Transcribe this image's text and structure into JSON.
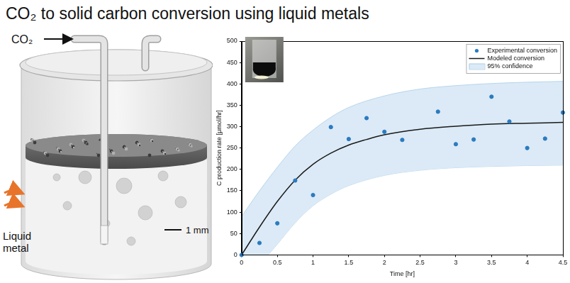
{
  "title": "CO₂ to solid carbon conversion using liquid metals",
  "diagram": {
    "inlet_label": "CO₂",
    "side_label": "Liquid metal",
    "scale_bar": "1 mm"
  },
  "chart_data": {
    "type": "scatter",
    "xlabel": "Time [hr]",
    "ylabel": "C production rate [μmol/hr]",
    "xlim": [
      0,
      4.5
    ],
    "xticks": [
      0,
      0.5,
      1,
      1.5,
      2,
      2.5,
      3,
      3.5,
      4,
      4.5
    ],
    "ylim": [
      0,
      500
    ],
    "yticks": [
      0,
      50,
      100,
      150,
      200,
      250,
      300,
      350,
      400,
      450,
      500
    ],
    "grid": false,
    "legend": "upper right",
    "series": [
      {
        "name": "Experimental conversion",
        "type": "scatter",
        "marker": "circle",
        "color": "#2b7bc0",
        "x": [
          0,
          0.25,
          0.5,
          0.75,
          1,
          1.25,
          1.5,
          1.75,
          2,
          2.25,
          2.75,
          3,
          3.25,
          3.5,
          3.75,
          4,
          4.25,
          4.5
        ],
        "values": [
          0,
          28,
          74,
          174,
          140,
          299,
          271,
          320,
          288,
          269,
          335,
          259,
          270,
          370,
          312,
          250,
          272,
          333
        ]
      },
      {
        "name": "Modeled conversion",
        "type": "line",
        "line_style": "solid",
        "color": "#1a1a1a",
        "x": [
          0,
          0.25,
          0.5,
          0.75,
          1,
          1.25,
          1.5,
          1.75,
          2,
          2.5,
          3,
          3.5,
          4,
          4.5
        ],
        "values": [
          0,
          65,
          125,
          175,
          212,
          238,
          257,
          270,
          281,
          294,
          301,
          306,
          308,
          310
        ]
      },
      {
        "name": "95% confidence",
        "type": "band",
        "color": "#dbeaf6",
        "x": [
          0,
          0.25,
          0.5,
          0.75,
          1,
          1.25,
          1.5,
          2,
          2.5,
          3,
          3.5,
          4,
          4.5
        ],
        "upper": [
          90,
          150,
          205,
          255,
          292,
          322,
          345,
          372,
          388,
          396,
          401,
          404,
          406
        ],
        "lower": [
          -90,
          -25,
          25,
          75,
          115,
          142,
          162,
          186,
          198,
          204,
          207,
          209,
          210
        ]
      }
    ]
  }
}
